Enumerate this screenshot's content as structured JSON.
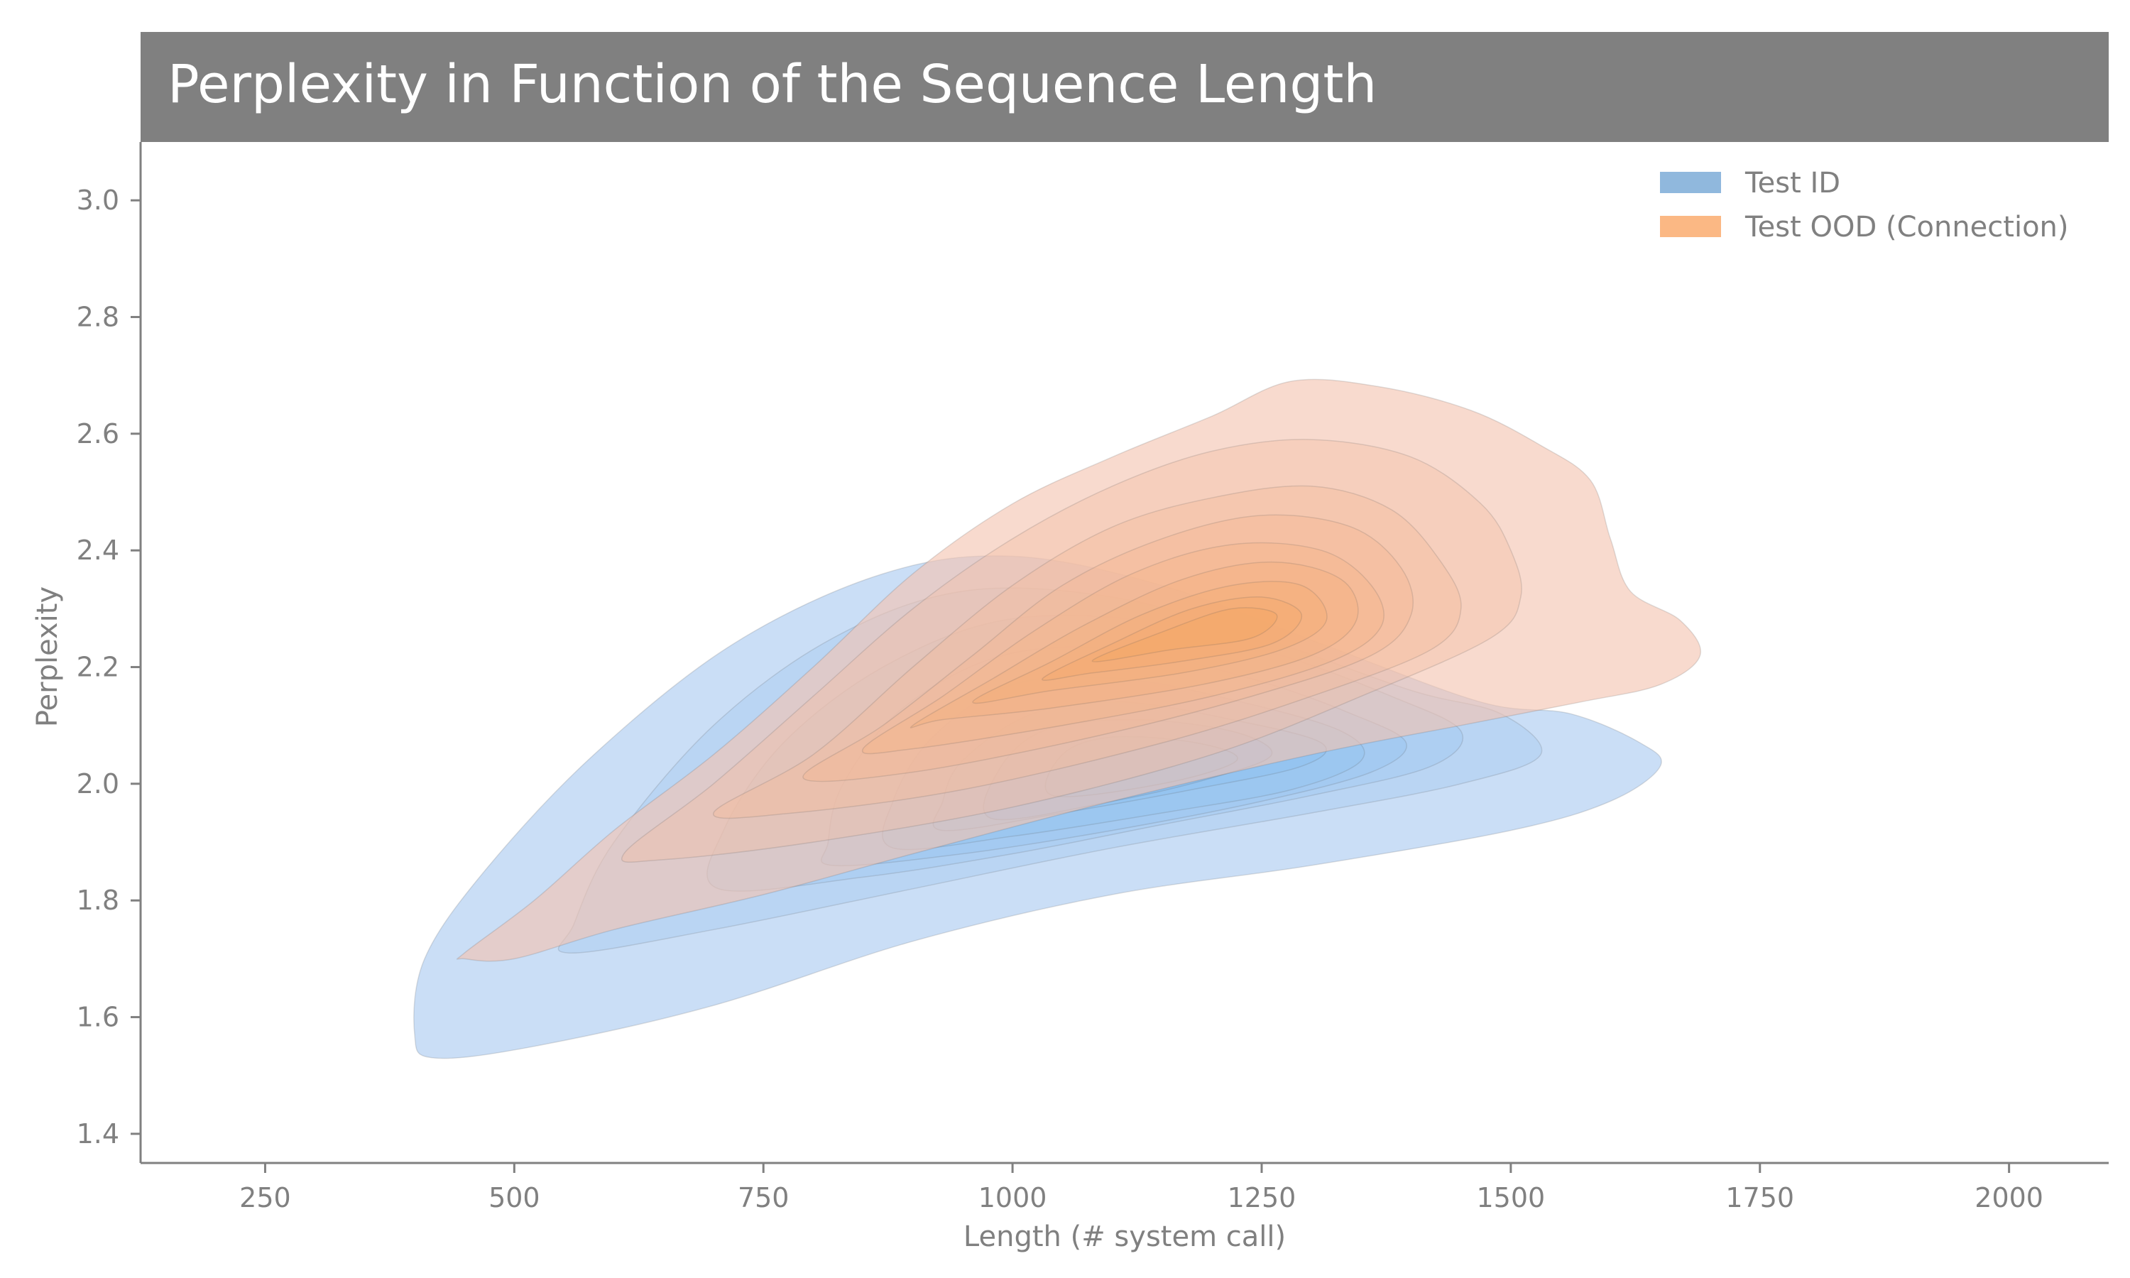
{
  "chart_data": {
    "type": "area",
    "title": "Perplexity in Function of the Sequence Length",
    "xlabel": "Length (# system call)",
    "ylabel": "Perplexity",
    "xlim": [
      125,
      2100
    ],
    "ylim": [
      1.35,
      3.1
    ],
    "xticks": [
      250,
      500,
      750,
      1000,
      1250,
      1500,
      1750,
      2000
    ],
    "yticks": [
      1.4,
      1.6,
      1.8,
      2.0,
      2.2,
      2.4,
      2.6,
      2.8,
      3.0
    ],
    "grid": false,
    "legend_position": "top-right",
    "colors": {
      "title_bar": "#808080",
      "axis": "#808080",
      "test_id": "#90b8dd",
      "test_ood": "#fbb884"
    },
    "series": [
      {
        "name": "Test ID",
        "color": "#a9c9f0",
        "core_color": "#7fbcf2",
        "center": [
          1150,
          2.05
        ],
        "contours": [
          [
            [
              420,
              1.53
            ],
            [
              520,
              1.55
            ],
            [
              700,
              1.62
            ],
            [
              900,
              1.73
            ],
            [
              1100,
              1.81
            ],
            [
              1300,
              1.86
            ],
            [
              1500,
              1.92
            ],
            [
              1600,
              1.97
            ],
            [
              1650,
              2.03
            ],
            [
              1630,
              2.07
            ],
            [
              1560,
              2.12
            ],
            [
              1470,
              2.14
            ],
            [
              1310,
              2.24
            ],
            [
              1150,
              2.34
            ],
            [
              1000,
              2.39
            ],
            [
              870,
              2.36
            ],
            [
              720,
              2.24
            ],
            [
              580,
              2.05
            ],
            [
              470,
              1.85
            ],
            [
              410,
              1.7
            ],
            [
              400,
              1.57
            ]
          ],
          [
            [
              555,
              1.71
            ],
            [
              700,
              1.75
            ],
            [
              900,
              1.82
            ],
            [
              1100,
              1.89
            ],
            [
              1300,
              1.95
            ],
            [
              1450,
              2.0
            ],
            [
              1530,
              2.05
            ],
            [
              1490,
              2.12
            ],
            [
              1400,
              2.16
            ],
            [
              1250,
              2.25
            ],
            [
              1100,
              2.32
            ],
            [
              950,
              2.33
            ],
            [
              820,
              2.25
            ],
            [
              700,
              2.1
            ],
            [
              600,
              1.9
            ],
            [
              560,
              1.76
            ]
          ],
          [
            [
              705,
              1.82
            ],
            [
              850,
              1.84
            ],
            [
              1000,
              1.88
            ],
            [
              1150,
              1.93
            ],
            [
              1300,
              1.98
            ],
            [
              1420,
              2.03
            ],
            [
              1450,
              2.09
            ],
            [
              1380,
              2.15
            ],
            [
              1270,
              2.22
            ],
            [
              1130,
              2.28
            ],
            [
              990,
              2.28
            ],
            [
              870,
              2.2
            ],
            [
              770,
              2.07
            ],
            [
              710,
              1.92
            ]
          ],
          [
            [
              820,
              1.86
            ],
            [
              950,
              1.88
            ],
            [
              1100,
              1.92
            ],
            [
              1250,
              1.97
            ],
            [
              1360,
              2.02
            ],
            [
              1395,
              2.07
            ],
            [
              1340,
              2.12
            ],
            [
              1240,
              2.18
            ],
            [
              1110,
              2.23
            ],
            [
              990,
              2.22
            ],
            [
              890,
              2.13
            ],
            [
              830,
              2.0
            ],
            [
              815,
              1.9
            ]
          ],
          [
            [
              880,
              1.89
            ],
            [
              1000,
              1.91
            ],
            [
              1150,
              1.95
            ],
            [
              1280,
              1.99
            ],
            [
              1350,
              2.04
            ],
            [
              1330,
              2.09
            ],
            [
              1230,
              2.14
            ],
            [
              1110,
              2.18
            ],
            [
              1000,
              2.17
            ],
            [
              920,
              2.08
            ],
            [
              880,
              1.97
            ]
          ],
          [
            [
              930,
              1.92
            ],
            [
              1050,
              1.95
            ],
            [
              1180,
              1.99
            ],
            [
              1290,
              2.03
            ],
            [
              1310,
              2.07
            ],
            [
              1220,
              2.11
            ],
            [
              1110,
              2.14
            ],
            [
              1020,
              2.12
            ],
            [
              950,
              2.04
            ],
            [
              930,
              1.97
            ]
          ],
          [
            [
              980,
              1.94
            ],
            [
              1100,
              1.97
            ],
            [
              1200,
              2.01
            ],
            [
              1260,
              2.05
            ],
            [
              1220,
              2.09
            ],
            [
              1120,
              2.11
            ],
            [
              1030,
              2.09
            ],
            [
              985,
              2.02
            ]
          ],
          [
            [
              1040,
              1.98
            ],
            [
              1150,
              2.0
            ],
            [
              1225,
              2.04
            ],
            [
              1185,
              2.07
            ],
            [
              1100,
              2.08
            ],
            [
              1050,
              2.05
            ]
          ]
        ]
      },
      {
        "name": "Test OOD (Connection)",
        "color": "#f3c3b0",
        "core_color": "#f6a45e",
        "center": [
          1200,
          2.28
        ],
        "contours": [
          [
            [
              450,
              1.71
            ],
            [
              520,
              1.8
            ],
            [
              600,
              1.92
            ],
            [
              700,
              2.05
            ],
            [
              800,
              2.2
            ],
            [
              900,
              2.36
            ],
            [
              1000,
              2.48
            ],
            [
              1100,
              2.56
            ],
            [
              1200,
              2.63
            ],
            [
              1280,
              2.69
            ],
            [
              1370,
              2.68
            ],
            [
              1460,
              2.64
            ],
            [
              1530,
              2.58
            ],
            [
              1580,
              2.52
            ],
            [
              1600,
              2.42
            ],
            [
              1620,
              2.33
            ],
            [
              1670,
              2.28
            ],
            [
              1690,
              2.22
            ],
            [
              1650,
              2.17
            ],
            [
              1570,
              2.14
            ],
            [
              1450,
              2.1
            ],
            [
              1300,
              2.05
            ],
            [
              1100,
              1.97
            ],
            [
              900,
              1.88
            ],
            [
              750,
              1.81
            ],
            [
              600,
              1.75
            ],
            [
              500,
              1.7
            ],
            [
              450,
              1.7
            ]
          ],
          [
            [
              610,
              1.88
            ],
            [
              700,
              2.0
            ],
            [
              800,
              2.15
            ],
            [
              900,
              2.3
            ],
            [
              1000,
              2.42
            ],
            [
              1100,
              2.51
            ],
            [
              1200,
              2.57
            ],
            [
              1300,
              2.59
            ],
            [
              1400,
              2.56
            ],
            [
              1470,
              2.48
            ],
            [
              1500,
              2.4
            ],
            [
              1510,
              2.32
            ],
            [
              1480,
              2.25
            ],
            [
              1350,
              2.15
            ],
            [
              1200,
              2.05
            ],
            [
              1000,
              1.96
            ],
            [
              800,
              1.9
            ],
            [
              650,
              1.87
            ]
          ],
          [
            [
              700,
              1.95
            ],
            [
              800,
              2.05
            ],
            [
              900,
              2.2
            ],
            [
              1000,
              2.34
            ],
            [
              1100,
              2.44
            ],
            [
              1200,
              2.49
            ],
            [
              1300,
              2.51
            ],
            [
              1380,
              2.47
            ],
            [
              1430,
              2.38
            ],
            [
              1450,
              2.3
            ],
            [
              1420,
              2.23
            ],
            [
              1300,
              2.15
            ],
            [
              1150,
              2.07
            ],
            [
              950,
              1.99
            ],
            [
              780,
              1.95
            ]
          ],
          [
            [
              790,
              2.01
            ],
            [
              870,
              2.1
            ],
            [
              960,
              2.22
            ],
            [
              1050,
              2.34
            ],
            [
              1150,
              2.42
            ],
            [
              1250,
              2.46
            ],
            [
              1340,
              2.44
            ],
            [
              1390,
              2.37
            ],
            [
              1400,
              2.29
            ],
            [
              1360,
              2.22
            ],
            [
              1240,
              2.15
            ],
            [
              1080,
              2.08
            ],
            [
              900,
              2.02
            ]
          ],
          [
            [
              850,
              2.06
            ],
            [
              930,
              2.15
            ],
            [
              1020,
              2.26
            ],
            [
              1120,
              2.36
            ],
            [
              1220,
              2.41
            ],
            [
              1310,
              2.4
            ],
            [
              1360,
              2.34
            ],
            [
              1370,
              2.27
            ],
            [
              1320,
              2.21
            ],
            [
              1200,
              2.15
            ],
            [
              1050,
              2.1
            ],
            [
              900,
              2.06
            ]
          ],
          [
            [
              900,
              2.1
            ],
            [
              980,
              2.18
            ],
            [
              1070,
              2.27
            ],
            [
              1170,
              2.35
            ],
            [
              1260,
              2.38
            ],
            [
              1330,
              2.35
            ],
            [
              1345,
              2.28
            ],
            [
              1300,
              2.22
            ],
            [
              1190,
              2.17
            ],
            [
              1040,
              2.13
            ],
            [
              930,
              2.11
            ]
          ],
          [
            [
              960,
              2.14
            ],
            [
              1040,
              2.21
            ],
            [
              1130,
              2.29
            ],
            [
              1220,
              2.34
            ],
            [
              1290,
              2.34
            ],
            [
              1315,
              2.28
            ],
            [
              1270,
              2.23
            ],
            [
              1170,
              2.19
            ],
            [
              1040,
              2.16
            ]
          ],
          [
            [
              1030,
              2.18
            ],
            [
              1100,
              2.24
            ],
            [
              1180,
              2.3
            ],
            [
              1250,
              2.32
            ],
            [
              1290,
              2.29
            ],
            [
              1260,
              2.24
            ],
            [
              1170,
              2.21
            ],
            [
              1080,
              2.19
            ]
          ],
          [
            [
              1080,
              2.21
            ],
            [
              1150,
              2.26
            ],
            [
              1220,
              2.3
            ],
            [
              1265,
              2.29
            ],
            [
              1240,
              2.25
            ],
            [
              1160,
              2.23
            ]
          ]
        ]
      }
    ]
  }
}
